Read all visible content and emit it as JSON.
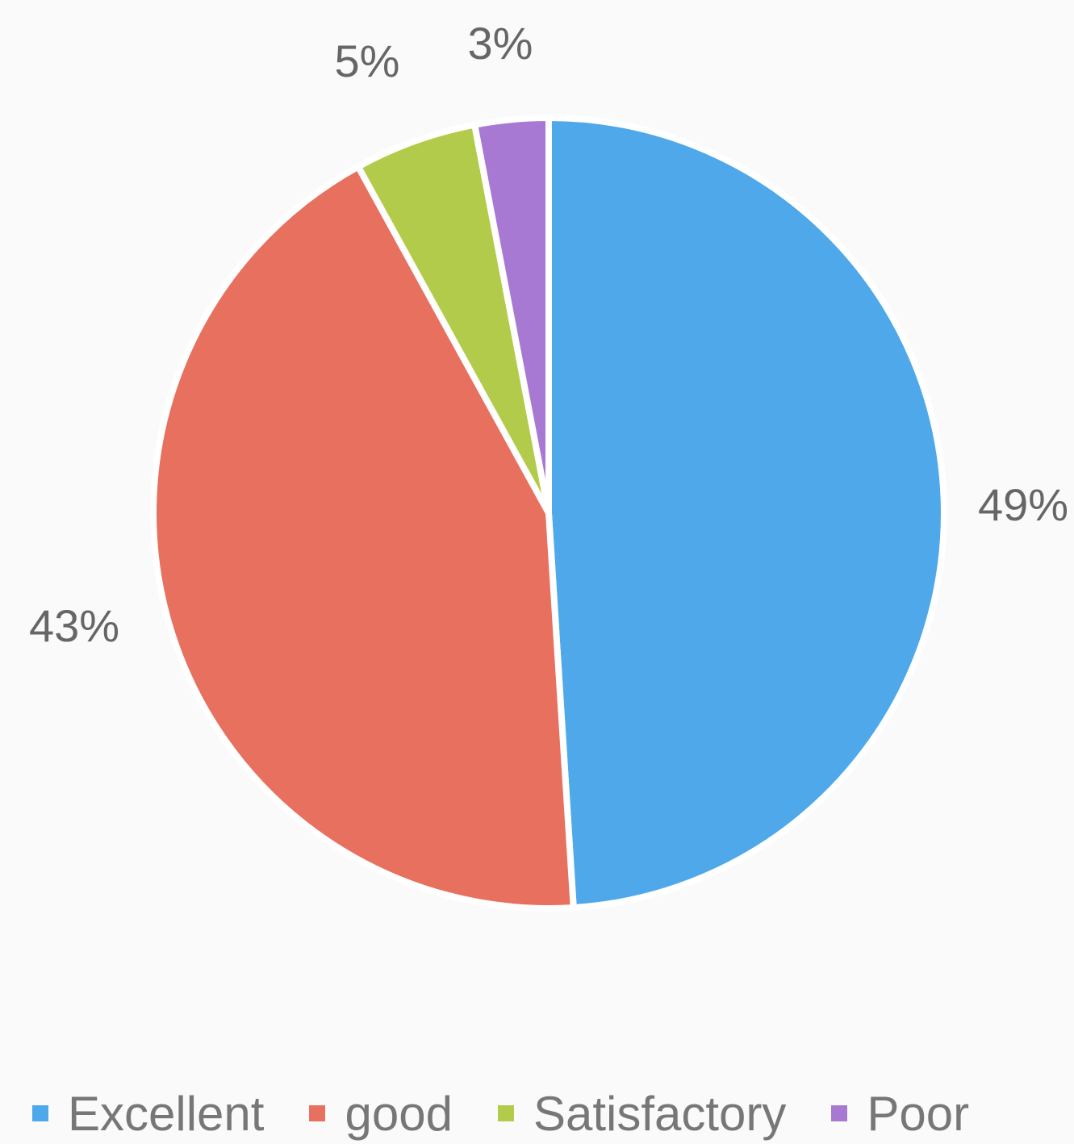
{
  "chart_data": {
    "type": "pie",
    "title": "",
    "categories": [
      "Excellent",
      "good",
      "Satisfactory",
      "Poor"
    ],
    "values": [
      49,
      43,
      5,
      3
    ],
    "data_labels": [
      "49%",
      "43%",
      "5%",
      "3%"
    ],
    "colors": [
      "#4ea8ea",
      "#e8705f",
      "#b3cb4a",
      "#a879d3"
    ],
    "legend_position": "bottom",
    "start_angle_deg": 0,
    "direction": "clockwise"
  }
}
